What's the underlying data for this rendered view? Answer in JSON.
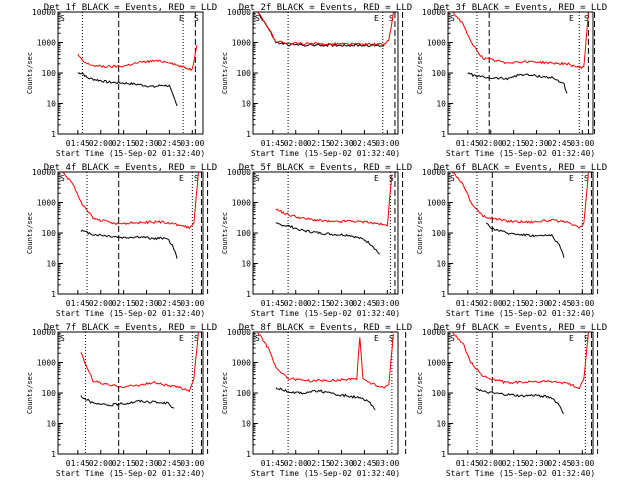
{
  "figure": {
    "start_time_label": "Start Time (15-Sep-02 01:32:40)",
    "y_axis_label": "Counts/sec",
    "x_tick_labels": [
      "01:45",
      "02:00",
      "02:15",
      "02:30",
      "02:45",
      "03:00"
    ],
    "y_tick_labels": [
      "1",
      "10",
      "100",
      "1000",
      "10000"
    ],
    "colors": {
      "events": "#000000",
      "lld": "#ff0000",
      "axes": "#000000"
    }
  },
  "chart_data": [
    {
      "type": "line",
      "title": "Det 1f BLACK = Events, RED = LLD",
      "xlabel": "Start Time (15-Sep-02 01:32:40)",
      "ylabel": "Counts/sec",
      "log_y": true,
      "ylim": [
        1,
        10000
      ],
      "series": [
        {
          "name": "Events",
          "color": "#000000",
          "x": [
            "01:45",
            "01:48",
            "01:51",
            "01:57",
            "02:05",
            "02:15",
            "02:25",
            "02:35",
            "02:40",
            "02:45",
            "02:47",
            "02:50"
          ],
          "values": [
            100,
            100,
            70,
            60,
            50,
            47,
            42,
            35,
            40,
            38,
            20,
            8
          ]
        },
        {
          "name": "LLD",
          "color": "#ff0000",
          "x": [
            "01:45",
            "01:48",
            "01:51",
            "01:57",
            "02:05",
            "02:15",
            "02:25",
            "02:35",
            "02:45",
            "02:50",
            "02:55",
            "03:00",
            "03:03"
          ],
          "values": [
            400,
            250,
            200,
            170,
            160,
            170,
            220,
            250,
            230,
            180,
            150,
            130,
            900
          ]
        }
      ]
    },
    {
      "type": "line",
      "title": "Det 2f BLACK = Events, RED = LLD",
      "xlabel": "Start Time (15-Sep-02 01:32:40)",
      "ylabel": "Counts/sec",
      "log_y": true,
      "ylim": [
        1,
        10000
      ],
      "series": [
        {
          "name": "Events",
          "color": "#000000",
          "x": [
            "01:35",
            "01:42",
            "01:47",
            "01:55",
            "02:10",
            "02:25",
            "02:40",
            "02:50",
            "02:58"
          ],
          "values": [
            10000,
            3000,
            1000,
            850,
            820,
            820,
            810,
            800,
            780
          ]
        },
        {
          "name": "LLD",
          "color": "#ff0000",
          "x": [
            "01:35",
            "01:42",
            "01:47",
            "01:55",
            "02:10",
            "02:25",
            "02:40",
            "02:50",
            "02:58",
            "03:01",
            "03:04"
          ],
          "values": [
            10000,
            3000,
            1100,
            950,
            900,
            900,
            880,
            870,
            860,
            1200,
            9000
          ]
        }
      ]
    },
    {
      "type": "line",
      "title": "Det 3f BLACK = Events, RED = LLD",
      "xlabel": "Start Time (15-Sep-02 01:32:40)",
      "ylabel": "Counts/sec",
      "log_y": true,
      "ylim": [
        1,
        10000
      ],
      "series": [
        {
          "name": "Events",
          "color": "#000000",
          "x": [
            "01:45",
            "01:50",
            "01:58",
            "02:10",
            "02:20",
            "02:30",
            "02:40",
            "02:48",
            "02:50"
          ],
          "values": [
            100,
            80,
            70,
            65,
            90,
            80,
            70,
            45,
            20
          ]
        },
        {
          "name": "LLD",
          "color": "#ff0000",
          "x": [
            "01:35",
            "01:42",
            "01:47",
            "01:55",
            "02:10",
            "02:25",
            "02:40",
            "02:50",
            "02:58",
            "03:01",
            "03:04"
          ],
          "values": [
            10000,
            4000,
            1000,
            300,
            220,
            240,
            210,
            200,
            150,
            160,
            9000
          ]
        }
      ]
    },
    {
      "type": "line",
      "title": "Det 4f BLACK = Events, RED = LLD",
      "xlabel": "Start Time (15-Sep-02 01:32:40)",
      "ylabel": "Counts/sec",
      "log_y": true,
      "ylim": [
        1,
        10000
      ],
      "series": [
        {
          "name": "Events",
          "color": "#000000",
          "x": [
            "01:47",
            "01:55",
            "02:05",
            "02:15",
            "02:25",
            "02:35",
            "02:43",
            "02:47",
            "02:50"
          ],
          "values": [
            120,
            90,
            80,
            70,
            75,
            65,
            70,
            40,
            15
          ]
        },
        {
          "name": "LLD",
          "color": "#ff0000",
          "x": [
            "01:35",
            "01:42",
            "01:47",
            "01:55",
            "02:10",
            "02:25",
            "02:40",
            "02:50",
            "02:58",
            "03:01",
            "03:04"
          ],
          "values": [
            10000,
            4000,
            1000,
            300,
            200,
            220,
            230,
            190,
            150,
            200,
            9000
          ]
        }
      ]
    },
    {
      "type": "line",
      "title": "Det 5f BLACK = Events, RED = LLD",
      "xlabel": "Start Time (15-Sep-02 01:32:40)",
      "ylabel": "Counts/sec",
      "log_y": true,
      "ylim": [
        1,
        10000
      ],
      "series": [
        {
          "name": "Events",
          "color": "#000000",
          "x": [
            "01:47",
            "01:55",
            "02:05",
            "02:15",
            "02:25",
            "02:35",
            "02:45",
            "02:50",
            "02:55"
          ],
          "values": [
            200,
            170,
            120,
            100,
            90,
            85,
            60,
            40,
            20
          ]
        },
        {
          "name": "LLD",
          "color": "#ff0000",
          "x": [
            "01:47",
            "01:55",
            "02:05",
            "02:15",
            "02:25",
            "02:35",
            "02:45",
            "02:55",
            "03:00",
            "03:03"
          ],
          "values": [
            600,
            400,
            300,
            260,
            230,
            250,
            230,
            200,
            170,
            9000
          ]
        }
      ]
    },
    {
      "type": "line",
      "title": "Det 6f BLACK = Events, RED = LLD",
      "xlabel": "Start Time (15-Sep-02 01:32:40)",
      "ylabel": "Counts/sec",
      "log_y": true,
      "ylim": [
        1,
        10000
      ],
      "series": [
        {
          "name": "Events",
          "color": "#000000",
          "x": [
            "01:57",
            "02:00",
            "02:10",
            "02:20",
            "02:30",
            "02:40",
            "02:45",
            "02:48"
          ],
          "values": [
            200,
            150,
            100,
            90,
            80,
            85,
            40,
            15
          ]
        },
        {
          "name": "LLD",
          "color": "#ff0000",
          "x": [
            "01:35",
            "01:42",
            "01:47",
            "01:55",
            "02:10",
            "02:25",
            "02:40",
            "02:50",
            "02:58",
            "03:01",
            "03:04"
          ],
          "values": [
            10000,
            4000,
            1000,
            350,
            250,
            230,
            260,
            220,
            150,
            200,
            9000
          ]
        }
      ]
    },
    {
      "type": "line",
      "title": "Det 7f BLACK = Events, RED = LLD",
      "xlabel": "Start Time (15-Sep-02 01:32:40)",
      "ylabel": "Counts/sec",
      "log_y": true,
      "ylim": [
        1,
        10000
      ],
      "series": [
        {
          "name": "Events",
          "color": "#000000",
          "x": [
            "01:47",
            "01:55",
            "02:05",
            "02:15",
            "02:25",
            "02:35",
            "02:45",
            "02:48"
          ],
          "values": [
            80,
            45,
            40,
            45,
            55,
            50,
            45,
            30
          ]
        },
        {
          "name": "LLD",
          "color": "#ff0000",
          "x": [
            "01:47",
            "01:55",
            "02:05",
            "02:15",
            "02:25",
            "02:35",
            "02:45",
            "02:52",
            "02:58",
            "03:01",
            "03:04"
          ],
          "values": [
            2000,
            250,
            180,
            160,
            180,
            220,
            170,
            150,
            120,
            300,
            9000
          ]
        }
      ]
    },
    {
      "type": "line",
      "title": "Det 8f BLACK = Events, RED = LLD",
      "xlabel": "Start Time (15-Sep-02 01:32:40)",
      "ylabel": "Counts/sec",
      "log_y": true,
      "ylim": [
        1,
        10000
      ],
      "series": [
        {
          "name": "Events",
          "color": "#000000",
          "x": [
            "01:47",
            "01:55",
            "02:05",
            "02:15",
            "02:25",
            "02:35",
            "02:43",
            "02:48",
            "02:52"
          ],
          "values": [
            150,
            110,
            100,
            120,
            90,
            80,
            65,
            50,
            30
          ]
        },
        {
          "name": "LLD",
          "color": "#ff0000",
          "x": [
            "01:35",
            "01:42",
            "01:47",
            "01:55",
            "02:10",
            "02:25",
            "02:40",
            "02:42",
            "02:44",
            "02:50",
            "02:58",
            "03:01",
            "03:04"
          ],
          "values": [
            10000,
            3000,
            700,
            300,
            250,
            260,
            300,
            7000,
            300,
            200,
            150,
            200,
            9000
          ]
        }
      ]
    },
    {
      "type": "line",
      "title": "Det 9f BLACK = Events, RED = LLD",
      "xlabel": "Start Time (15-Sep-02 01:32:40)",
      "ylabel": "Counts/sec",
      "log_y": true,
      "ylim": [
        1,
        10000
      ],
      "series": [
        {
          "name": "Events",
          "color": "#000000",
          "x": [
            "01:50",
            "01:55",
            "02:00",
            "02:10",
            "02:20",
            "02:30",
            "02:40",
            "02:45",
            "02:48"
          ],
          "values": [
            150,
            110,
            100,
            90,
            80,
            85,
            70,
            40,
            20
          ]
        },
        {
          "name": "LLD",
          "color": "#ff0000",
          "x": [
            "01:35",
            "01:42",
            "01:47",
            "01:55",
            "02:10",
            "02:25",
            "02:40",
            "02:50",
            "02:58",
            "03:01",
            "03:04"
          ],
          "values": [
            10000,
            4000,
            1000,
            350,
            220,
            230,
            240,
            200,
            150,
            300,
            9000
          ]
        }
      ]
    }
  ]
}
